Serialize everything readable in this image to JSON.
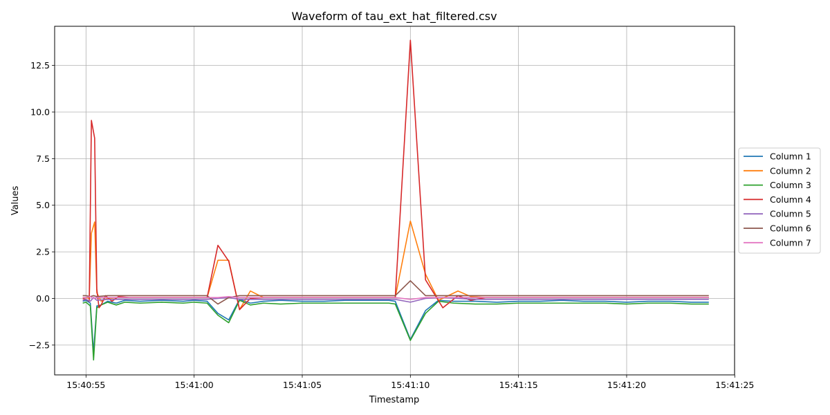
{
  "chart_data": {
    "type": "line",
    "title": "Waveform of tau_ext_hat_filtered.csv",
    "xlabel": "Timestamp",
    "ylabel": "Values",
    "x_ticks": [
      {
        "t": 55,
        "label": "15:40:55"
      },
      {
        "t": 60,
        "label": "15:41:00"
      },
      {
        "t": 65,
        "label": "15:41:05"
      },
      {
        "t": 70,
        "label": "15:41:10"
      },
      {
        "t": 75,
        "label": "15:41:15"
      },
      {
        "t": 80,
        "label": "15:41:20"
      },
      {
        "t": 85,
        "label": "15:41:25"
      }
    ],
    "y_ticks": [
      {
        "v": -2.5,
        "label": "−2.5"
      },
      {
        "v": 0.0,
        "label": "0.0"
      },
      {
        "v": 2.5,
        "label": "2.5"
      },
      {
        "v": 5.0,
        "label": "5.0"
      },
      {
        "v": 7.5,
        "label": "7.5"
      },
      {
        "v": 10.0,
        "label": "10.0"
      },
      {
        "v": 12.5,
        "label": "12.5"
      }
    ],
    "xlim": [
      53.55,
      84.99
    ],
    "ylim": [
      -4.1,
      14.6
    ],
    "grid": true,
    "legend_position": "center-right outside",
    "series": [
      {
        "name": "Column 1",
        "color": "#1f77b4",
        "x": [
          54.85,
          55.0,
          55.2,
          55.35,
          55.5,
          55.7,
          56.0,
          56.4,
          56.8,
          57.5,
          58.5,
          59.5,
          60.0,
          60.6,
          61.1,
          61.6,
          62.1,
          62.6,
          63.2,
          64.0,
          65.0,
          66.0,
          67.0,
          68.0,
          69.0,
          69.3,
          70.0,
          70.7,
          71.3,
          72.0,
          73.0,
          74.0,
          75.0,
          76.0,
          77.0,
          78.0,
          79.0,
          80.0,
          81.0,
          82.0,
          83.0,
          83.8
        ],
        "y": [
          -0.15,
          -0.1,
          -0.25,
          -2.9,
          -0.4,
          -0.35,
          -0.15,
          -0.25,
          -0.1,
          -0.15,
          -0.1,
          -0.15,
          -0.1,
          -0.15,
          -0.8,
          -1.15,
          -0.05,
          -0.25,
          -0.15,
          -0.1,
          -0.15,
          -0.15,
          -0.1,
          -0.1,
          -0.1,
          -0.15,
          -2.2,
          -0.65,
          -0.1,
          -0.15,
          -0.15,
          -0.2,
          -0.15,
          -0.15,
          -0.1,
          -0.15,
          -0.15,
          -0.2,
          -0.15,
          -0.15,
          -0.2,
          -0.2
        ]
      },
      {
        "name": "Column 2",
        "color": "#ff7f0e",
        "x": [
          54.85,
          55.0,
          55.15,
          55.25,
          55.4,
          55.5,
          55.7,
          56.0,
          56.4,
          57.0,
          58.0,
          59.0,
          60.0,
          60.6,
          61.1,
          61.6,
          62.1,
          62.6,
          63.2,
          64.0,
          65.0,
          66.0,
          67.0,
          68.0,
          69.0,
          69.3,
          70.0,
          70.7,
          71.3,
          72.2,
          72.8,
          73.5,
          74.0,
          75.0,
          76.0,
          77.0,
          78.0,
          79.0,
          80.0,
          81.0,
          82.0,
          83.0,
          83.8
        ],
        "y": [
          0.05,
          0.05,
          0.0,
          3.5,
          4.1,
          0.3,
          -0.15,
          0.0,
          0.05,
          0.05,
          0.05,
          0.05,
          0.05,
          0.05,
          2.05,
          2.05,
          -0.6,
          0.4,
          0.05,
          0.05,
          0.05,
          0.05,
          0.05,
          0.05,
          0.05,
          0.05,
          4.15,
          1.3,
          -0.1,
          0.4,
          0.1,
          0.05,
          0.05,
          0.05,
          0.05,
          0.05,
          0.05,
          0.05,
          0.05,
          0.05,
          0.05,
          0.05,
          0.05
        ]
      },
      {
        "name": "Column 3",
        "color": "#2ca02c",
        "x": [
          54.85,
          55.0,
          55.2,
          55.35,
          55.5,
          55.7,
          56.0,
          56.4,
          56.8,
          57.5,
          58.5,
          59.5,
          60.0,
          60.6,
          61.1,
          61.6,
          62.1,
          62.6,
          63.2,
          64.0,
          65.0,
          66.0,
          67.0,
          68.0,
          69.0,
          69.3,
          70.0,
          70.7,
          71.3,
          72.0,
          73.0,
          74.0,
          75.0,
          76.0,
          77.0,
          78.0,
          79.0,
          80.0,
          81.0,
          82.0,
          83.0,
          83.8
        ],
        "y": [
          -0.25,
          -0.2,
          -0.4,
          -3.3,
          -0.5,
          -0.35,
          -0.2,
          -0.35,
          -0.2,
          -0.25,
          -0.2,
          -0.25,
          -0.2,
          -0.25,
          -0.9,
          -1.3,
          -0.1,
          -0.35,
          -0.25,
          -0.3,
          -0.25,
          -0.25,
          -0.25,
          -0.25,
          -0.25,
          -0.3,
          -2.25,
          -0.8,
          -0.15,
          -0.25,
          -0.3,
          -0.3,
          -0.25,
          -0.25,
          -0.25,
          -0.25,
          -0.25,
          -0.3,
          -0.25,
          -0.25,
          -0.3,
          -0.3
        ]
      },
      {
        "name": "Column 4",
        "color": "#d62728",
        "x": [
          54.85,
          55.0,
          55.15,
          55.25,
          55.4,
          55.5,
          55.6,
          55.7,
          55.9,
          56.2,
          56.5,
          57.0,
          58.0,
          59.0,
          60.0,
          60.6,
          61.1,
          61.6,
          62.1,
          62.6,
          63.2,
          64.0,
          65.0,
          66.0,
          67.0,
          68.0,
          69.0,
          69.3,
          70.0,
          70.7,
          71.5,
          72.2,
          72.8,
          73.5,
          74.0,
          75.0,
          76.0,
          77.0,
          78.0,
          79.0,
          80.0,
          81.0,
          82.0,
          83.0,
          83.8
        ],
        "y": [
          0.0,
          -0.05,
          -0.15,
          9.55,
          8.6,
          0.5,
          -0.5,
          -0.35,
          0.15,
          -0.15,
          0.1,
          0.05,
          0.05,
          0.05,
          0.05,
          0.05,
          2.85,
          2.0,
          -0.6,
          0.0,
          0.05,
          0.05,
          0.05,
          0.05,
          0.05,
          0.05,
          0.05,
          0.05,
          13.85,
          1.0,
          -0.5,
          0.15,
          -0.1,
          0.05,
          0.05,
          0.05,
          0.05,
          0.05,
          0.05,
          0.05,
          0.05,
          0.05,
          0.05,
          0.05,
          0.05
        ]
      },
      {
        "name": "Column 5",
        "color": "#9467bd",
        "x": [
          54.85,
          55.0,
          55.2,
          55.35,
          55.5,
          56.0,
          57.0,
          58.0,
          59.0,
          60.0,
          60.6,
          61.1,
          61.6,
          62.1,
          62.6,
          63.2,
          64.0,
          65.0,
          66.0,
          67.0,
          68.0,
          69.0,
          69.3,
          70.0,
          70.7,
          71.5,
          72.2,
          73.0,
          74.0,
          75.0,
          76.0,
          77.0,
          78.0,
          79.0,
          80.0,
          81.0,
          82.0,
          83.0,
          83.8
        ],
        "y": [
          -0.1,
          -0.05,
          -0.15,
          0.05,
          -0.1,
          -0.05,
          -0.05,
          -0.05,
          -0.05,
          -0.05,
          -0.05,
          0.0,
          0.05,
          -0.05,
          -0.05,
          -0.05,
          -0.05,
          -0.05,
          -0.05,
          -0.05,
          -0.05,
          -0.05,
          -0.05,
          -0.2,
          0.0,
          0.05,
          0.0,
          -0.05,
          -0.05,
          -0.05,
          -0.05,
          -0.05,
          -0.05,
          -0.05,
          -0.05,
          -0.05,
          -0.05,
          -0.05,
          -0.05
        ]
      },
      {
        "name": "Column 6",
        "color": "#8c564b",
        "x": [
          54.85,
          55.0,
          55.2,
          55.35,
          55.5,
          56.0,
          57.0,
          58.0,
          59.0,
          60.0,
          60.6,
          61.1,
          61.6,
          62.1,
          62.6,
          63.2,
          64.0,
          65.0,
          66.0,
          67.0,
          68.0,
          69.0,
          69.3,
          70.0,
          70.7,
          71.5,
          72.2,
          73.0,
          74.0,
          75.0,
          76.0,
          77.0,
          78.0,
          79.0,
          80.0,
          81.0,
          82.0,
          83.0,
          83.8
        ],
        "y": [
          0.15,
          0.15,
          0.1,
          0.15,
          0.1,
          0.15,
          0.15,
          0.15,
          0.15,
          0.15,
          0.15,
          -0.3,
          0.05,
          0.15,
          0.15,
          0.15,
          0.15,
          0.15,
          0.15,
          0.15,
          0.15,
          0.15,
          0.15,
          0.95,
          0.15,
          0.15,
          0.15,
          0.15,
          0.15,
          0.15,
          0.15,
          0.15,
          0.15,
          0.15,
          0.15,
          0.15,
          0.15,
          0.15,
          0.15
        ]
      },
      {
        "name": "Column 7",
        "color": "#e377c2",
        "x": [
          54.85,
          55.0,
          55.2,
          55.35,
          55.5,
          56.0,
          57.0,
          58.0,
          59.0,
          60.0,
          60.6,
          61.1,
          61.6,
          62.1,
          62.6,
          63.2,
          64.0,
          65.0,
          66.0,
          67.0,
          68.0,
          69.0,
          69.3,
          70.0,
          70.7,
          71.5,
          72.2,
          73.0,
          74.0,
          75.0,
          76.0,
          77.0,
          78.0,
          79.0,
          80.0,
          81.0,
          82.0,
          83.0,
          83.8
        ],
        "y": [
          0.05,
          0.05,
          0.1,
          0.0,
          0.05,
          0.05,
          0.05,
          0.05,
          0.05,
          0.05,
          0.05,
          0.05,
          0.1,
          0.05,
          0.05,
          0.05,
          0.05,
          0.05,
          0.05,
          0.05,
          0.05,
          0.05,
          0.05,
          -0.05,
          0.05,
          0.05,
          0.05,
          0.05,
          0.05,
          0.05,
          0.05,
          0.05,
          0.05,
          0.05,
          0.05,
          0.05,
          0.05,
          0.05,
          0.05
        ]
      }
    ]
  }
}
